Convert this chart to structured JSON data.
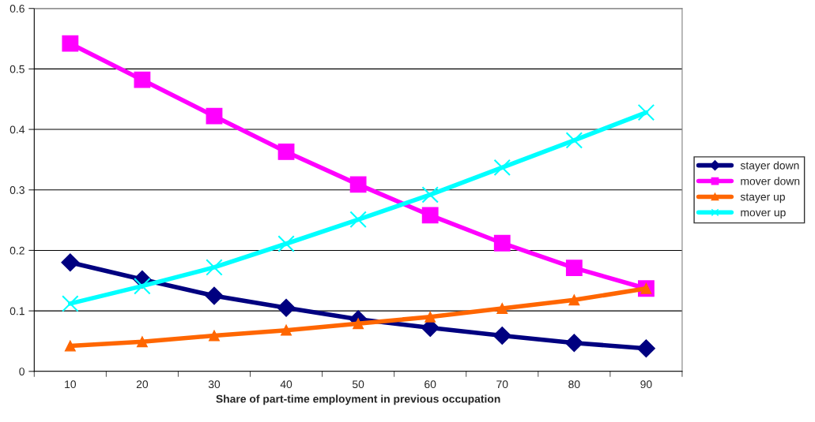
{
  "chart_data": {
    "type": "line",
    "xlabel": "Share of part-time employment in previous occupation",
    "categories": [
      "10",
      "20",
      "30",
      "40",
      "50",
      "60",
      "70",
      "80",
      "90"
    ],
    "series": [
      {
        "name": "stayer down",
        "color": "#000080",
        "marker": "diamond",
        "values": [
          0.18,
          0.152,
          0.125,
          0.105,
          0.086,
          0.072,
          0.059,
          0.047,
          0.038
        ]
      },
      {
        "name": "mover down",
        "color": "#ff00ff",
        "marker": "square",
        "values": [
          0.542,
          0.482,
          0.422,
          0.363,
          0.309,
          0.258,
          0.212,
          0.171,
          0.137
        ]
      },
      {
        "name": "stayer up",
        "color": "#ff6600",
        "marker": "triangle",
        "values": [
          0.042,
          0.049,
          0.059,
          0.068,
          0.079,
          0.09,
          0.104,
          0.118,
          0.137
        ]
      },
      {
        "name": "mover up",
        "color": "#00ffff",
        "marker": "cross",
        "values": [
          0.112,
          0.141,
          0.172,
          0.211,
          0.251,
          0.292,
          0.337,
          0.382,
          0.428
        ]
      }
    ],
    "ylim": [
      0,
      0.6
    ],
    "yticks": [
      0,
      0.1,
      0.2,
      0.3,
      0.4,
      0.5,
      0.6
    ],
    "grid": "y",
    "legend": "right"
  }
}
